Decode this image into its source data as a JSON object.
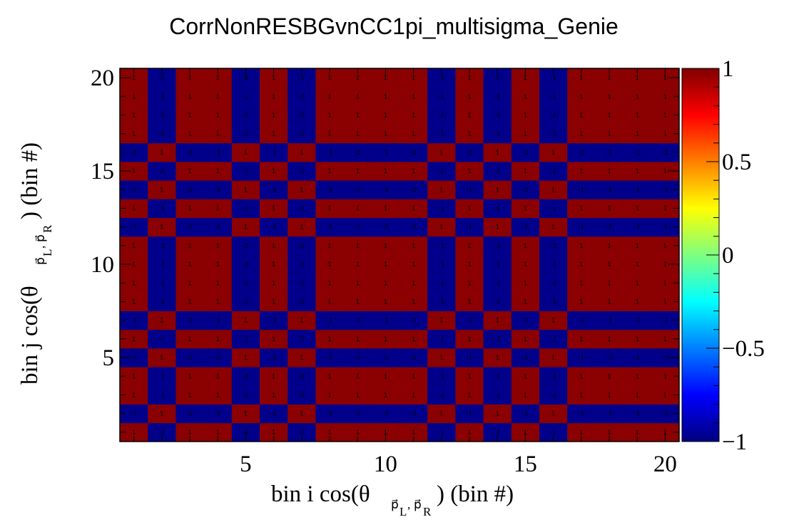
{
  "chart_data": {
    "type": "heatmap",
    "title": "CorrNonRESBGvnCC1pi_multisigma_Genie",
    "xlabel": {
      "main": "bin i cos(θ",
      "sub1": "p⃗",
      "sub1b": "L",
      "comma": ",",
      "sub2": "p⃗",
      "sub2b": "R",
      "close": ") (bin #)"
    },
    "ylabel": {
      "main": "bin j cos(θ",
      "sub1": "p⃗",
      "sub1b": "L",
      "comma": ",",
      "sub2": "p⃗",
      "sub2b": "R",
      "close": ") (bin #)"
    },
    "nbins": 20,
    "xlim": [
      0.5,
      20.5
    ],
    "ylim": [
      0.5,
      20.5
    ],
    "x_ticks": [
      5,
      10,
      15,
      20
    ],
    "y_ticks": [
      5,
      10,
      15,
      20
    ],
    "zlim": [
      -1,
      1
    ],
    "z_ticks": [
      1,
      0.5,
      0,
      -0.5,
      -1
    ],
    "z_tick_labels": [
      "1",
      "0.5",
      "0",
      "−0.5",
      "−1"
    ],
    "signs": [
      1,
      -1,
      1,
      1,
      -1,
      1,
      -1,
      1,
      1,
      1,
      1,
      -1,
      1,
      -1,
      1,
      -1,
      1,
      1,
      1,
      1
    ],
    "value_rule": "z[i][j] = signs[i] * signs[j]",
    "colors": {
      "positive": "#8b0000",
      "negative": "#00008b",
      "palette": [
        "#00007f",
        "#0000ff",
        "#007fff",
        "#00ffff",
        "#7fff7f",
        "#ffff00",
        "#ff7f00",
        "#ff0000",
        "#7f0000"
      ]
    }
  }
}
